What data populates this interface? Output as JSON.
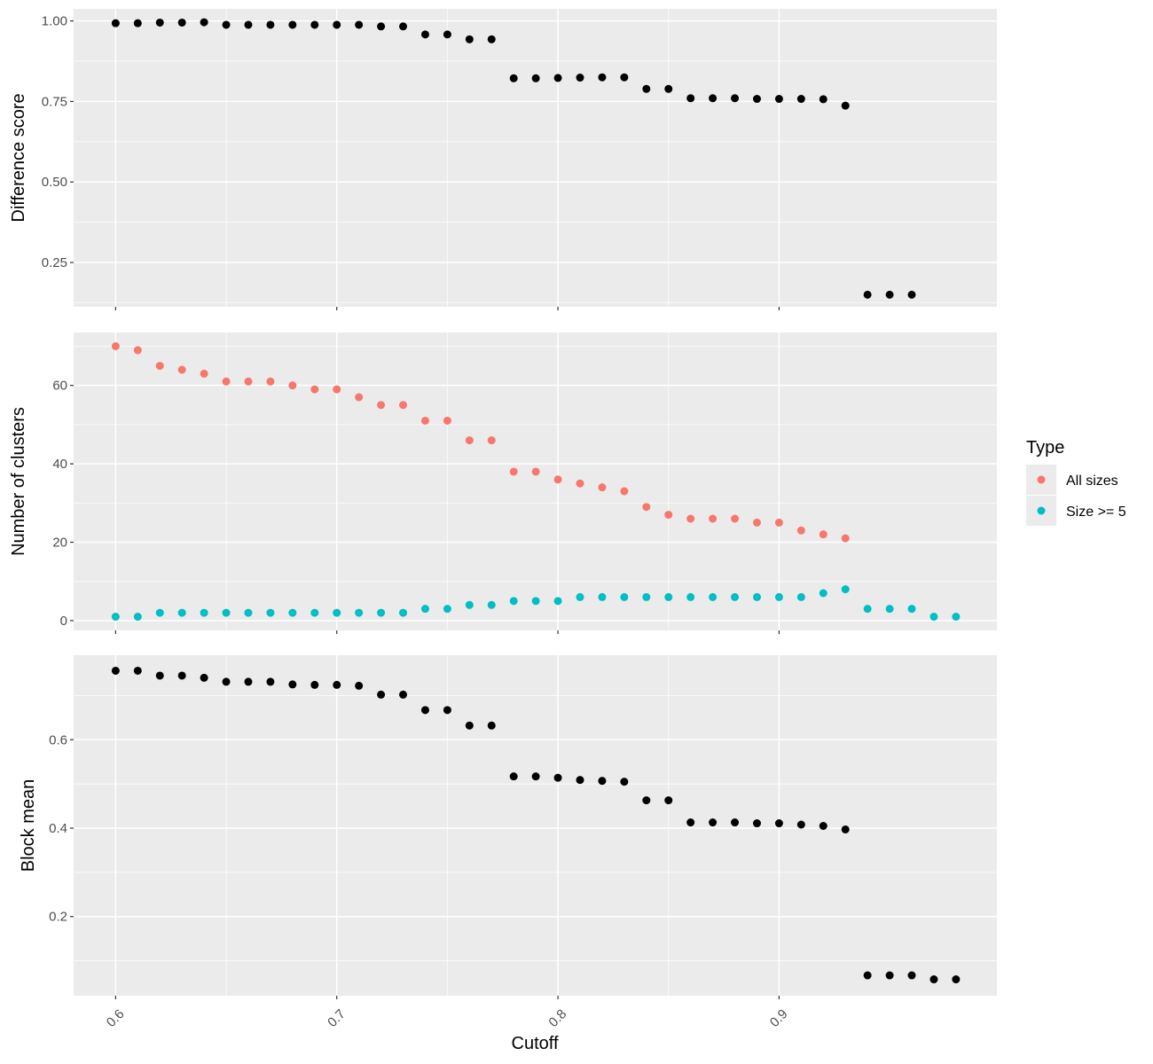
{
  "x_axis": {
    "label": "Cutoff",
    "ticks": [
      0.6,
      0.7,
      0.8,
      0.9
    ],
    "tick_labels": [
      "0.6",
      "0.7",
      "0.8",
      "0.9"
    ],
    "range": [
      0.581,
      0.9985
    ]
  },
  "legend": {
    "title": "Type",
    "placement": "right",
    "items": [
      {
        "label": "All sizes",
        "color": "#F8766D"
      },
      {
        "label": "Size >= 5",
        "color": "#00BFC4"
      }
    ]
  },
  "colors": {
    "panel_bg": "#EBEBEB",
    "grid": "#FFFFFF",
    "black_points": "#000000"
  },
  "chart_data": [
    {
      "type": "scatter",
      "ylabel": "Difference score",
      "ylim": [
        0.1125,
        1.0375
      ],
      "yticks": [
        0.25,
        0.5,
        0.75,
        1.0
      ],
      "ytick_labels": [
        "0.25",
        "0.50",
        "0.75",
        "1.00"
      ],
      "grid": true,
      "series": [
        {
          "color": "#000000",
          "points": [
            [
              0.6,
              0.993
            ],
            [
              0.61,
              0.993
            ],
            [
              0.62,
              0.995
            ],
            [
              0.63,
              0.995
            ],
            [
              0.64,
              0.996
            ],
            [
              0.65,
              0.988
            ],
            [
              0.66,
              0.988
            ],
            [
              0.67,
              0.988
            ],
            [
              0.68,
              0.988
            ],
            [
              0.69,
              0.988
            ],
            [
              0.7,
              0.988
            ],
            [
              0.71,
              0.988
            ],
            [
              0.72,
              0.983
            ],
            [
              0.73,
              0.983
            ],
            [
              0.74,
              0.958
            ],
            [
              0.75,
              0.958
            ],
            [
              0.76,
              0.943
            ],
            [
              0.77,
              0.943
            ],
            [
              0.78,
              0.822
            ],
            [
              0.79,
              0.822
            ],
            [
              0.8,
              0.823
            ],
            [
              0.81,
              0.824
            ],
            [
              0.82,
              0.825
            ],
            [
              0.83,
              0.825
            ],
            [
              0.84,
              0.789
            ],
            [
              0.85,
              0.789
            ],
            [
              0.86,
              0.76
            ],
            [
              0.87,
              0.76
            ],
            [
              0.88,
              0.76
            ],
            [
              0.89,
              0.758
            ],
            [
              0.9,
              0.758
            ],
            [
              0.91,
              0.758
            ],
            [
              0.92,
              0.757
            ],
            [
              0.93,
              0.737
            ],
            [
              0.94,
              0.15
            ],
            [
              0.95,
              0.15
            ],
            [
              0.96,
              0.15
            ]
          ]
        }
      ]
    },
    {
      "type": "scatter",
      "ylabel": "Number of clusters",
      "ylim": [
        -2.5,
        73.5
      ],
      "yticks": [
        0,
        20,
        40,
        60
      ],
      "ytick_labels": [
        "0",
        "20",
        "40",
        "60"
      ],
      "grid": true,
      "series": [
        {
          "name": "All sizes",
          "color": "#F8766D",
          "points": [
            [
              0.6,
              70
            ],
            [
              0.61,
              69
            ],
            [
              0.62,
              65
            ],
            [
              0.63,
              64
            ],
            [
              0.64,
              63
            ],
            [
              0.65,
              61
            ],
            [
              0.66,
              61
            ],
            [
              0.67,
              61
            ],
            [
              0.68,
              60
            ],
            [
              0.69,
              59
            ],
            [
              0.7,
              59
            ],
            [
              0.71,
              57
            ],
            [
              0.72,
              55
            ],
            [
              0.73,
              55
            ],
            [
              0.74,
              51
            ],
            [
              0.75,
              51
            ],
            [
              0.76,
              46
            ],
            [
              0.77,
              46
            ],
            [
              0.78,
              38
            ],
            [
              0.79,
              38
            ],
            [
              0.8,
              36
            ],
            [
              0.81,
              35
            ],
            [
              0.82,
              34
            ],
            [
              0.83,
              33
            ],
            [
              0.84,
              29
            ],
            [
              0.85,
              27
            ],
            [
              0.86,
              26
            ],
            [
              0.87,
              26
            ],
            [
              0.88,
              26
            ],
            [
              0.89,
              25
            ],
            [
              0.9,
              25
            ],
            [
              0.91,
              23
            ],
            [
              0.92,
              22
            ],
            [
              0.93,
              21
            ]
          ]
        },
        {
          "name": "Size >= 5",
          "color": "#00BFC4",
          "points": [
            [
              0.6,
              1
            ],
            [
              0.61,
              1
            ],
            [
              0.62,
              2
            ],
            [
              0.63,
              2
            ],
            [
              0.64,
              2
            ],
            [
              0.65,
              2
            ],
            [
              0.66,
              2
            ],
            [
              0.67,
              2
            ],
            [
              0.68,
              2
            ],
            [
              0.69,
              2
            ],
            [
              0.7,
              2
            ],
            [
              0.71,
              2
            ],
            [
              0.72,
              2
            ],
            [
              0.73,
              2
            ],
            [
              0.74,
              3
            ],
            [
              0.75,
              3
            ],
            [
              0.76,
              4
            ],
            [
              0.77,
              4
            ],
            [
              0.78,
              5
            ],
            [
              0.79,
              5
            ],
            [
              0.8,
              5
            ],
            [
              0.81,
              6
            ],
            [
              0.82,
              6
            ],
            [
              0.83,
              6
            ],
            [
              0.84,
              6
            ],
            [
              0.85,
              6
            ],
            [
              0.86,
              6
            ],
            [
              0.87,
              6
            ],
            [
              0.88,
              6
            ],
            [
              0.89,
              6
            ],
            [
              0.9,
              6
            ],
            [
              0.91,
              6
            ],
            [
              0.92,
              7
            ],
            [
              0.93,
              8
            ],
            [
              0.94,
              3
            ],
            [
              0.95,
              3
            ],
            [
              0.96,
              3
            ],
            [
              0.97,
              1
            ],
            [
              0.98,
              1
            ]
          ]
        }
      ]
    },
    {
      "type": "scatter",
      "ylabel": "Block mean",
      "ylim": [
        0.021,
        0.791
      ],
      "yticks": [
        0.2,
        0.4,
        0.6
      ],
      "ytick_labels": [
        "0.2",
        "0.4",
        "0.6"
      ],
      "grid": true,
      "series": [
        {
          "color": "#000000",
          "points": [
            [
              0.6,
              0.756
            ],
            [
              0.61,
              0.756
            ],
            [
              0.62,
              0.745
            ],
            [
              0.63,
              0.745
            ],
            [
              0.64,
              0.74
            ],
            [
              0.65,
              0.731
            ],
            [
              0.66,
              0.731
            ],
            [
              0.67,
              0.731
            ],
            [
              0.68,
              0.725
            ],
            [
              0.69,
              0.724
            ],
            [
              0.7,
              0.724
            ],
            [
              0.71,
              0.722
            ],
            [
              0.72,
              0.702
            ],
            [
              0.73,
              0.702
            ],
            [
              0.74,
              0.667
            ],
            [
              0.75,
              0.667
            ],
            [
              0.76,
              0.632
            ],
            [
              0.77,
              0.632
            ],
            [
              0.78,
              0.517
            ],
            [
              0.79,
              0.517
            ],
            [
              0.8,
              0.514
            ],
            [
              0.81,
              0.509
            ],
            [
              0.82,
              0.507
            ],
            [
              0.83,
              0.505
            ],
            [
              0.84,
              0.463
            ],
            [
              0.85,
              0.463
            ],
            [
              0.86,
              0.413
            ],
            [
              0.87,
              0.413
            ],
            [
              0.88,
              0.413
            ],
            [
              0.89,
              0.411
            ],
            [
              0.9,
              0.411
            ],
            [
              0.91,
              0.408
            ],
            [
              0.92,
              0.405
            ],
            [
              0.93,
              0.397
            ],
            [
              0.94,
              0.067
            ],
            [
              0.95,
              0.067
            ],
            [
              0.96,
              0.067
            ],
            [
              0.97,
              0.058
            ],
            [
              0.98,
              0.058
            ]
          ]
        }
      ]
    }
  ]
}
